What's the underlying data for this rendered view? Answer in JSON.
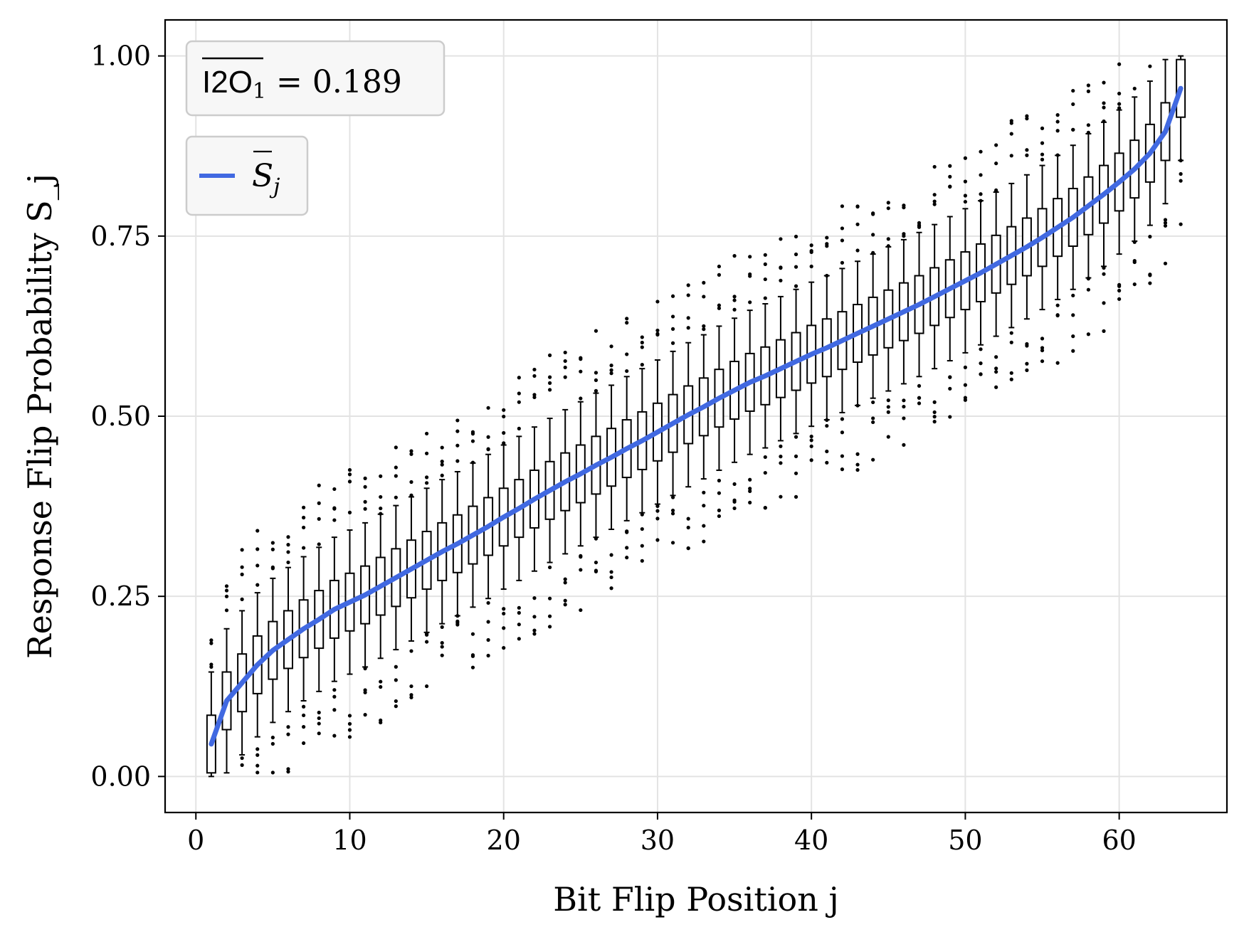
{
  "chart_data": {
    "type": "box",
    "title": "",
    "xlabel": "Bit Flip Position j",
    "ylabel": "Response Flip Probability S_j",
    "xlim": [
      -2,
      67
    ],
    "ylim": [
      -0.05,
      1.05
    ],
    "xticks": [
      0,
      10,
      20,
      30,
      40,
      50,
      60
    ],
    "xtick_labels": [
      "0",
      "10",
      "20",
      "30",
      "40",
      "50",
      "60"
    ],
    "yticks": [
      0.0,
      0.25,
      0.5,
      0.75,
      1.0
    ],
    "ytick_labels": [
      "0.00",
      "0.25",
      "0.50",
      "0.75",
      "1.00"
    ],
    "grid": true,
    "annotation": {
      "text_main": "I2O",
      "text_sub": "1",
      "text_value": " = 0.189",
      "value": 0.189
    },
    "legend": {
      "position": "top-left",
      "label_main": "S",
      "label_sub": "j",
      "color": "#4169e1"
    },
    "positions": [
      1,
      2,
      3,
      4,
      5,
      6,
      7,
      8,
      9,
      10,
      11,
      12,
      13,
      14,
      15,
      16,
      17,
      18,
      19,
      20,
      21,
      22,
      23,
      24,
      25,
      26,
      27,
      28,
      29,
      30,
      31,
      32,
      33,
      34,
      35,
      36,
      37,
      38,
      39,
      40,
      41,
      42,
      43,
      44,
      45,
      46,
      47,
      48,
      49,
      50,
      51,
      52,
      53,
      54,
      55,
      56,
      57,
      58,
      59,
      60,
      61,
      62,
      63,
      64
    ],
    "mean_curve": [
      0.045,
      0.105,
      0.13,
      0.155,
      0.175,
      0.19,
      0.205,
      0.218,
      0.232,
      0.242,
      0.252,
      0.264,
      0.276,
      0.288,
      0.3,
      0.312,
      0.323,
      0.335,
      0.347,
      0.36,
      0.372,
      0.385,
      0.397,
      0.409,
      0.42,
      0.432,
      0.443,
      0.455,
      0.466,
      0.478,
      0.49,
      0.502,
      0.513,
      0.525,
      0.536,
      0.547,
      0.556,
      0.566,
      0.576,
      0.586,
      0.595,
      0.605,
      0.615,
      0.625,
      0.635,
      0.645,
      0.655,
      0.666,
      0.677,
      0.688,
      0.699,
      0.711,
      0.723,
      0.735,
      0.748,
      0.762,
      0.776,
      0.792,
      0.808,
      0.825,
      0.843,
      0.865,
      0.895,
      0.955
    ],
    "iqr_half_width": 0.04,
    "whisker_half_width": 0.1,
    "series": [
      {
        "name": "S_j",
        "values_ref": "mean_curve",
        "color": "#4169e1"
      }
    ]
  }
}
